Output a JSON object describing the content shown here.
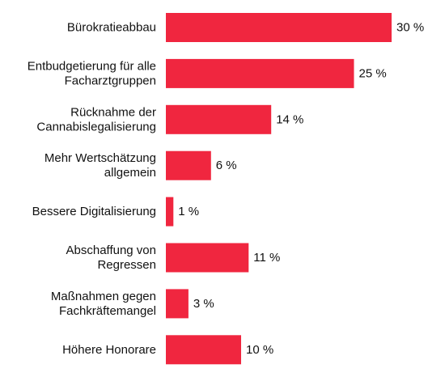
{
  "chart_data": {
    "type": "bar",
    "orientation": "horizontal",
    "categories": [
      [
        "Bürokratieabbau"
      ],
      [
        "Entbudgetierung für alle",
        "Facharztgruppen"
      ],
      [
        "Rücknahme der",
        "Cannabislegalisierung"
      ],
      [
        "Mehr Wertschätzung",
        "allgemein"
      ],
      [
        "Bessere Digitalisierung"
      ],
      [
        "Abschaffung von",
        "Regressen"
      ],
      [
        "Maßnahmen gegen",
        "Fachkräftemangel"
      ],
      [
        "Höhere Honorare"
      ]
    ],
    "values": [
      30,
      25,
      14,
      6,
      1,
      11,
      3,
      10
    ],
    "value_labels": [
      "30 %",
      "25 %",
      "14 %",
      "6 %",
      "1 %",
      "11 %",
      "3 %",
      "10 %"
    ],
    "xlim": [
      0,
      30
    ],
    "grid": false,
    "bar_color": "#f0263f",
    "title": "",
    "xlabel": "",
    "ylabel": ""
  }
}
